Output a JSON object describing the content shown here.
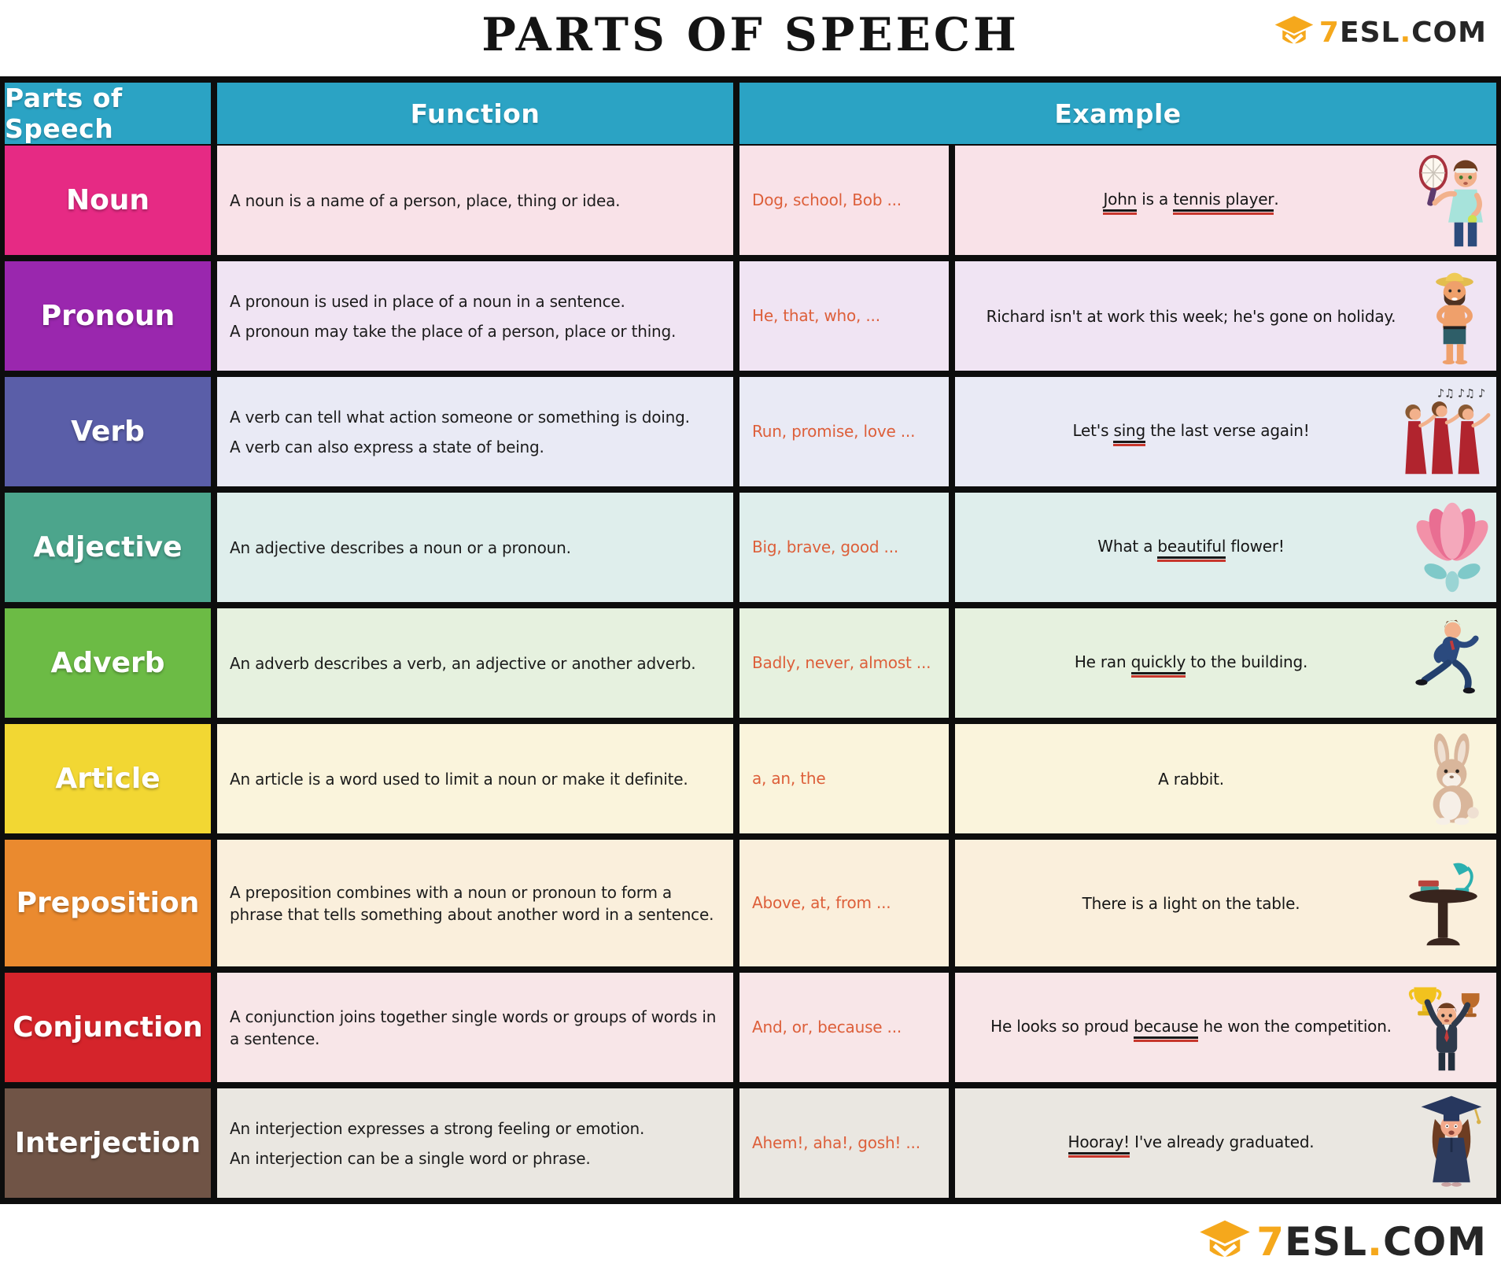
{
  "title": "PARTS OF SPEECH",
  "logo": {
    "seven": "7",
    "esl": "ESL",
    "dot": ".",
    "com": "COM"
  },
  "palette": {
    "header_bg": "#2BA3C4",
    "border": "#0D0D0D",
    "words_color": "#DD5F3A",
    "underline_black": "#181818",
    "underline_red": "#C8372D",
    "logo_orange": "#F5A81C",
    "logo_dark": "#262626"
  },
  "table": {
    "headers": [
      "Parts of Speech",
      "Function",
      "Example"
    ],
    "rows": [
      {
        "id": "noun",
        "name": "Noun",
        "label_color": "#E62A84",
        "tint": "#F9E2E8",
        "tall": false,
        "function": [
          "A noun is a name of a person, place, thing or idea."
        ],
        "words": "Dog, school, Bob ...",
        "example": [
          {
            "t": "John",
            "u": true
          },
          {
            "t": " is a ",
            "u": false
          },
          {
            "t": "tennis player",
            "u": true
          },
          {
            "t": ".",
            "u": false
          }
        ],
        "illustration": "tennis-player"
      },
      {
        "id": "pronoun",
        "name": "Pronoun",
        "label_color": "#9A27AE",
        "tint": "#F0E4F3",
        "tall": false,
        "function": [
          "A pronoun is used in place of a noun in a sentence.",
          "A pronoun may take the place of a person, place or thing."
        ],
        "words": "He, that, who, ...",
        "example": [
          {
            "t": "Richard isn't at work this week; he's gone on holiday.",
            "u": false
          }
        ],
        "illustration": "beach-man"
      },
      {
        "id": "verb",
        "name": "Verb",
        "label_color": "#5A5EA8",
        "tint": "#E9EAF5",
        "tall": false,
        "function": [
          "A verb can tell what action someone or something is doing.",
          "A verb can also express a state of being."
        ],
        "words": "Run, promise, love ...",
        "example": [
          {
            "t": "Let's ",
            "u": false
          },
          {
            "t": "sing",
            "u": true
          },
          {
            "t": " the last verse again!",
            "u": false
          }
        ],
        "illustration": "singing-trio"
      },
      {
        "id": "adjective",
        "name": "Adjective",
        "label_color": "#4CA58C",
        "tint": "#DFEEEC",
        "tall": false,
        "function": [
          "An adjective describes a noun or a pronoun."
        ],
        "words": "Big, brave, good ...",
        "example": [
          {
            "t": "What a ",
            "u": false
          },
          {
            "t": "beautiful",
            "u": true
          },
          {
            "t": " flower!",
            "u": false
          }
        ],
        "illustration": "flower"
      },
      {
        "id": "adverb",
        "name": "Adverb",
        "label_color": "#6CBB45",
        "tint": "#E6F1DF",
        "tall": false,
        "function": [
          "An adverb describes a verb, an adjective or another adverb."
        ],
        "words": "Badly, never, almost ...",
        "example": [
          {
            "t": "He ran ",
            "u": false
          },
          {
            "t": "quickly",
            "u": true
          },
          {
            "t": " to the building.",
            "u": false
          }
        ],
        "illustration": "running-man"
      },
      {
        "id": "article",
        "name": "Article",
        "label_color": "#F2D733",
        "tint": "#FAF4DC",
        "tall": false,
        "function": [
          "An article is a word used to limit a noun or make it definite."
        ],
        "words": "a, an, the",
        "example": [
          {
            "t": "A rabbit.",
            "u": false
          }
        ],
        "illustration": "rabbit"
      },
      {
        "id": "preposition",
        "name": "Preposition",
        "label_color": "#EA8A2F",
        "tint": "#FAEFDC",
        "tall": true,
        "function": [
          "A preposition combines with a noun or pronoun to form a phrase that tells something about another word in a sentence."
        ],
        "words": "Above, at, from ...",
        "example": [
          {
            "t": "There is a light on the table.",
            "u": false
          }
        ],
        "illustration": "lamp-on-table"
      },
      {
        "id": "conjunction",
        "name": "Conjunction",
        "label_color": "#D5242B",
        "tint": "#F8E6E8",
        "tall": false,
        "function": [
          "A conjunction joins together single words or groups of words in a sentence."
        ],
        "words": "And, or, because ...",
        "example": [
          {
            "t": "He looks so proud ",
            "u": false
          },
          {
            "t": "because",
            "u": true
          },
          {
            "t": " he won the competition.",
            "u": false
          }
        ],
        "illustration": "trophy-winner"
      },
      {
        "id": "interjection",
        "name": "Interjection",
        "label_color": "#705446",
        "tint": "#EAE7E1",
        "tall": false,
        "function": [
          "An interjection expresses a strong feeling or emotion.",
          "An interjection can be a single word or phrase."
        ],
        "words": "Ahem!, aha!, gosh! ...",
        "example": [
          {
            "t": "Hooray!",
            "u": true
          },
          {
            "t": " I've already graduated.",
            "u": false
          }
        ],
        "illustration": "graduate"
      }
    ]
  }
}
